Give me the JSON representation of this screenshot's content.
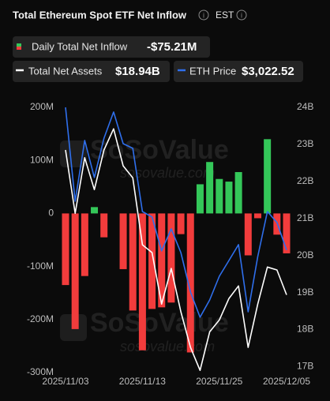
{
  "chart_data": {
    "type": "bar_line",
    "title": "Total Ethereum Spot ETF Net Inflow",
    "timezone": "EST",
    "watermark": {
      "brand": "SoSoValue",
      "url": "sosovalue.com"
    },
    "categories": [
      "2025/11/03",
      null,
      null,
      null,
      null,
      null,
      null,
      null,
      "2025/11/13",
      null,
      null,
      null,
      null,
      null,
      null,
      null,
      "2025/11/25",
      null,
      null,
      null,
      null,
      null,
      null,
      "2025/12/05"
    ],
    "series": [
      {
        "name": "Daily Total Net Inflow",
        "type": "bar",
        "color": "#f23c3c",
        "positive_color": "#34c759",
        "latest_label": "-$75.21M",
        "values": [
          -135,
          -218,
          -118,
          12,
          -45,
          0,
          -105,
          -183,
          -258,
          -180,
          -177,
          -168,
          -39,
          -262,
          55,
          97,
          65,
          60,
          78,
          -79,
          -9,
          140,
          -40,
          -75.21
        ]
      },
      {
        "name": "Total Net Assets",
        "type": "line",
        "axis": "y2",
        "color": "#ffffff",
        "latest_label": "$18.94B",
        "values": [
          22.85,
          21.14,
          22.64,
          21.78,
          22.85,
          23.42,
          22.42,
          22.1,
          20.29,
          20.08,
          18.69,
          19.65,
          18.48,
          17.52,
          16.9,
          17.94,
          18.26,
          18.84,
          19.18,
          17.52,
          18.69,
          19.69,
          19.61,
          18.94
        ]
      },
      {
        "name": "ETH Price",
        "type": "line",
        "axis": "y3",
        "color": "#2f6fec",
        "latest_label": "$3,022.52",
        "values": [
          3600,
          3220,
          3466,
          3316,
          3475,
          3581,
          3453,
          3434,
          3178,
          3156,
          3019,
          3108,
          3012,
          2852,
          2750,
          2820,
          2916,
          2980,
          3044,
          2772,
          2996,
          3178,
          3134,
          3022.52
        ]
      }
    ],
    "ylim": [
      -300,
      200
    ],
    "yticks": [
      {
        "value": 200,
        "label": "200M"
      },
      {
        "value": 100,
        "label": "100M"
      },
      0,
      {
        "value": -100,
        "label": "-100M"
      },
      {
        "value": -200,
        "label": "-200M"
      },
      {
        "value": -300,
        "label": "-300M"
      }
    ],
    "y2lim": [
      16.84,
      24
    ],
    "y2ticks": [
      {
        "value": 24,
        "label": "24B"
      },
      {
        "value": 23,
        "label": "23B"
      },
      {
        "value": 22,
        "label": "22B"
      },
      {
        "value": 21,
        "label": "21B"
      },
      {
        "value": 20,
        "label": "20B"
      },
      {
        "value": 19,
        "label": "19B"
      },
      {
        "value": 18,
        "label": "18B"
      },
      {
        "value": 17,
        "label": "17B"
      }
    ],
    "y3lim": [
      2526,
      3600
    ],
    "grid": false
  }
}
